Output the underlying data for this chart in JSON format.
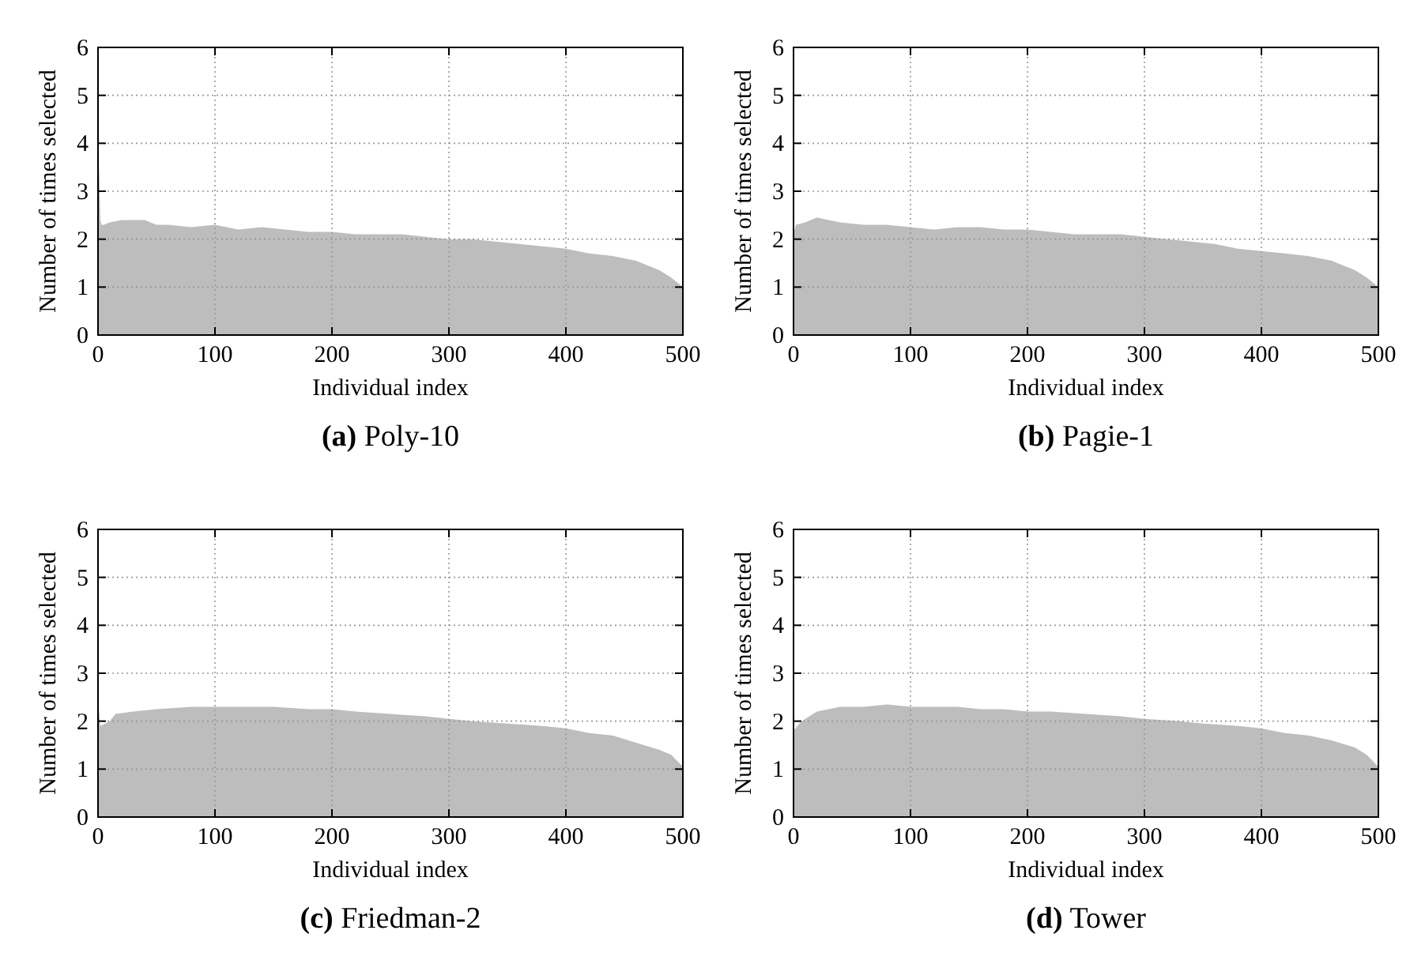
{
  "chart_data": [
    {
      "type": "area",
      "title": "(a) Poly-10",
      "xlabel": "Individual index",
      "ylabel": "Number of times selected",
      "color": "#bdbdbd",
      "grid": true,
      "xlim": [
        0,
        500
      ],
      "ylim": [
        0,
        6
      ],
      "xticks": [
        0,
        100,
        200,
        300,
        400,
        500
      ],
      "yticks": [
        0,
        1,
        2,
        3,
        4,
        5,
        6
      ],
      "x": [
        0,
        1,
        2,
        3,
        5,
        10,
        20,
        30,
        40,
        50,
        60,
        80,
        100,
        120,
        140,
        160,
        180,
        200,
        220,
        240,
        260,
        280,
        300,
        320,
        340,
        360,
        380,
        400,
        420,
        440,
        460,
        470,
        480,
        490,
        495,
        500
      ],
      "values": [
        2.4,
        3.6,
        2.4,
        2.3,
        2.3,
        2.35,
        2.4,
        2.4,
        2.4,
        2.3,
        2.3,
        2.25,
        2.3,
        2.2,
        2.25,
        2.2,
        2.15,
        2.15,
        2.1,
        2.1,
        2.1,
        2.05,
        2.0,
        2.0,
        1.95,
        1.9,
        1.85,
        1.8,
        1.7,
        1.65,
        1.55,
        1.45,
        1.35,
        1.2,
        1.1,
        1.0
      ]
    },
    {
      "type": "area",
      "title": "(b) Pagie-1",
      "xlabel": "Individual index",
      "ylabel": "Number of times selected",
      "color": "#bdbdbd",
      "grid": true,
      "xlim": [
        0,
        500
      ],
      "ylim": [
        0,
        6
      ],
      "xticks": [
        0,
        100,
        200,
        300,
        400,
        500
      ],
      "yticks": [
        0,
        1,
        2,
        3,
        4,
        5,
        6
      ],
      "x": [
        0,
        2,
        10,
        20,
        30,
        40,
        60,
        80,
        100,
        120,
        140,
        160,
        180,
        200,
        220,
        240,
        260,
        280,
        300,
        320,
        340,
        360,
        380,
        400,
        420,
        440,
        460,
        470,
        480,
        490,
        500
      ],
      "values": [
        2.1,
        2.3,
        2.35,
        2.45,
        2.4,
        2.35,
        2.3,
        2.3,
        2.25,
        2.2,
        2.25,
        2.25,
        2.2,
        2.2,
        2.15,
        2.1,
        2.1,
        2.1,
        2.05,
        2.0,
        1.95,
        1.9,
        1.8,
        1.75,
        1.7,
        1.65,
        1.55,
        1.45,
        1.35,
        1.2,
        1.0
      ]
    },
    {
      "type": "area",
      "title": "(c) Friedman-2",
      "xlabel": "Individual index",
      "ylabel": "Number of times selected",
      "color": "#bdbdbd",
      "grid": true,
      "xlim": [
        0,
        500
      ],
      "ylim": [
        0,
        6
      ],
      "xticks": [
        0,
        100,
        200,
        300,
        400,
        500
      ],
      "yticks": [
        0,
        1,
        2,
        3,
        4,
        5,
        6
      ],
      "x": [
        0,
        2,
        10,
        15,
        30,
        50,
        80,
        100,
        120,
        150,
        180,
        200,
        220,
        250,
        280,
        300,
        320,
        350,
        380,
        400,
        420,
        440,
        460,
        480,
        490,
        500
      ],
      "values": [
        2.5,
        1.9,
        2.0,
        2.15,
        2.2,
        2.25,
        2.3,
        2.3,
        2.3,
        2.3,
        2.25,
        2.25,
        2.2,
        2.15,
        2.1,
        2.05,
        2.0,
        1.95,
        1.9,
        1.85,
        1.75,
        1.7,
        1.55,
        1.4,
        1.3,
        1.05
      ]
    },
    {
      "type": "area",
      "title": "(d) Tower",
      "xlabel": "Individual index",
      "ylabel": "Number of times selected",
      "color": "#bdbdbd",
      "grid": true,
      "xlim": [
        0,
        500
      ],
      "ylim": [
        0,
        6
      ],
      "xticks": [
        0,
        100,
        200,
        300,
        400,
        500
      ],
      "yticks": [
        0,
        1,
        2,
        3,
        4,
        5,
        6
      ],
      "x": [
        0,
        5,
        10,
        20,
        40,
        60,
        80,
        100,
        120,
        140,
        160,
        180,
        200,
        220,
        250,
        280,
        300,
        330,
        350,
        380,
        400,
        420,
        440,
        460,
        480,
        490,
        500
      ],
      "values": [
        1.8,
        1.95,
        2.05,
        2.2,
        2.3,
        2.3,
        2.35,
        2.3,
        2.3,
        2.3,
        2.25,
        2.25,
        2.2,
        2.2,
        2.15,
        2.1,
        2.05,
        2.0,
        1.95,
        1.9,
        1.85,
        1.75,
        1.7,
        1.6,
        1.45,
        1.3,
        1.05
      ]
    }
  ]
}
